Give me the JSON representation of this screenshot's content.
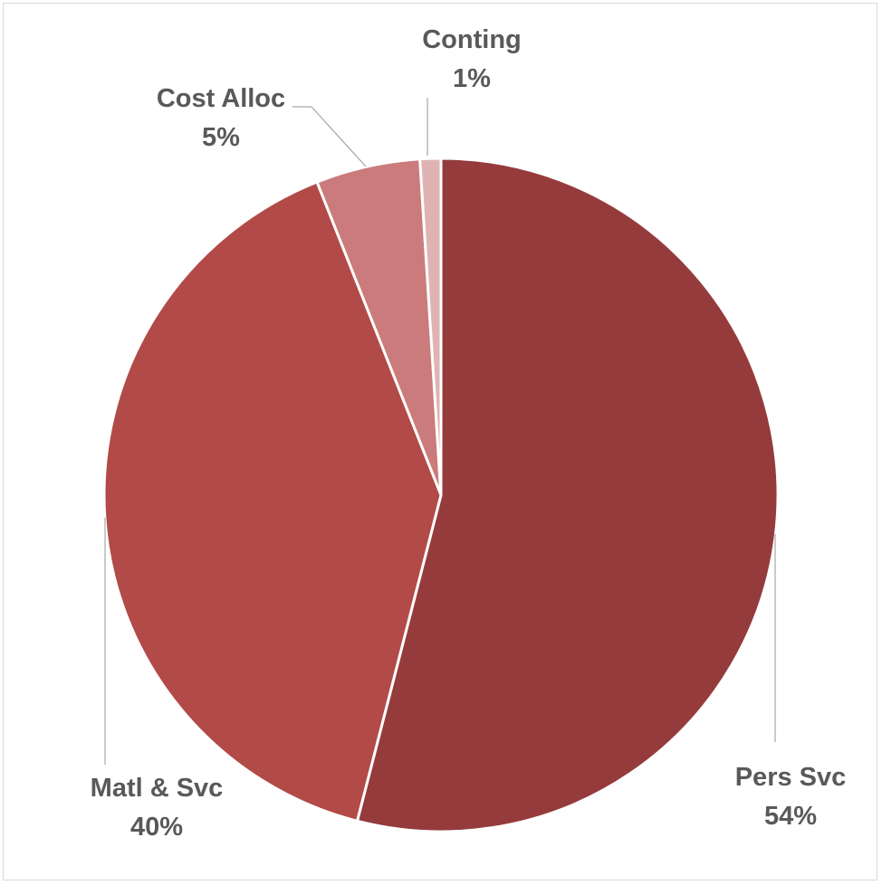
{
  "chart_data": {
    "type": "pie",
    "slices": [
      {
        "label": "Pers Svc",
        "value": 54,
        "display": "54%",
        "color": "#953B3B"
      },
      {
        "label": "Matl & Svc",
        "value": 40,
        "display": "40%",
        "color": "#B24A48"
      },
      {
        "label": "Cost Alloc",
        "value": 5,
        "display": "5%",
        "color": "#CB7B7B"
      },
      {
        "label": "Conting",
        "value": 1,
        "display": "1%",
        "color": "#E0B3B3"
      }
    ],
    "start_angle": "12 o'clock",
    "direction": "clockwise",
    "legend": "none",
    "data_labels": "outside-with-leader-lines"
  }
}
